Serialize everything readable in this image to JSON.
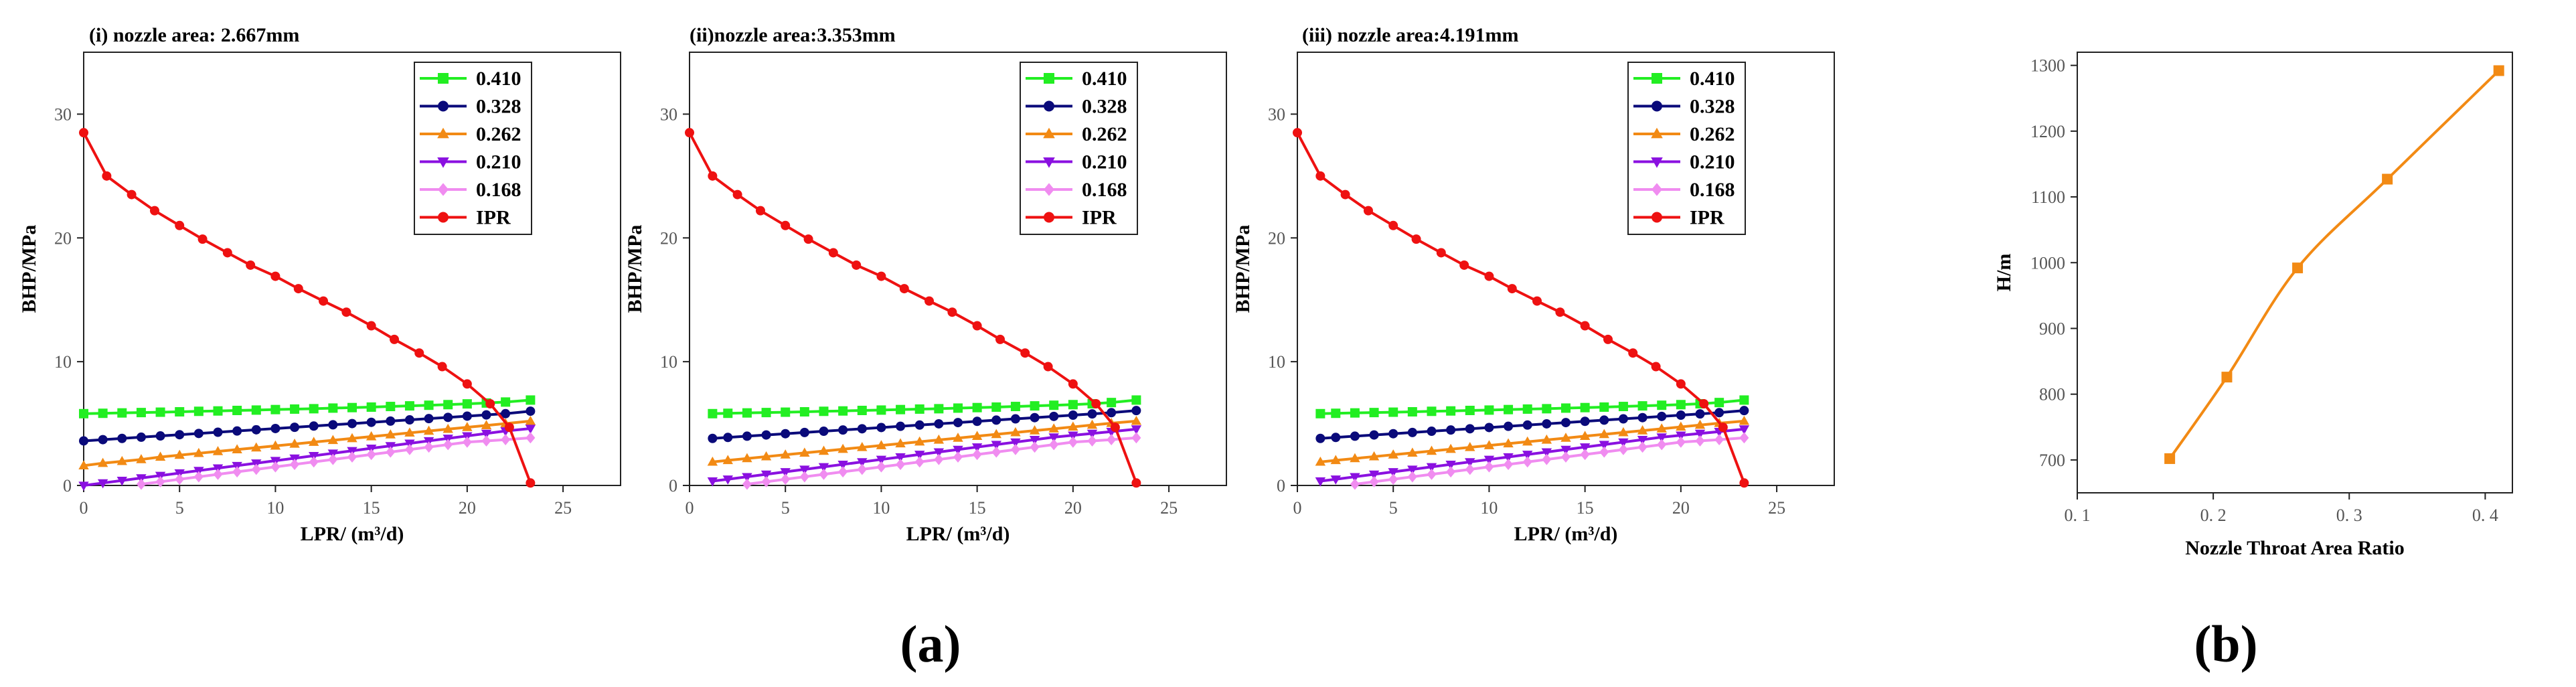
{
  "captions": [
    "(a)",
    "(b)"
  ],
  "chart_data": [
    {
      "type": "line",
      "title": "(i) nozzle area: 2.667mm",
      "xlabel": "LPR/ (m³/d)",
      "ylabel": "BHP/MPa",
      "xlim": [
        0,
        28
      ],
      "ylim": [
        0,
        35
      ],
      "xticks": [
        0,
        5,
        10,
        15,
        20,
        25
      ],
      "yticks": [
        0,
        10,
        20,
        30
      ],
      "legend_position": "top-right",
      "series": [
        {
          "name": "0.410",
          "color": "#22ee22",
          "marker": "square",
          "x": [
            0,
            1,
            2,
            3,
            4,
            5,
            6,
            7,
            8,
            9,
            10,
            11,
            12,
            13,
            14,
            15,
            16,
            17,
            18,
            19,
            20,
            21,
            22,
            23.3
          ],
          "y": [
            5.8,
            5.83,
            5.86,
            5.89,
            5.92,
            5.95,
            5.99,
            6.02,
            6.06,
            6.09,
            6.13,
            6.17,
            6.2,
            6.25,
            6.29,
            6.33,
            6.38,
            6.43,
            6.48,
            6.53,
            6.59,
            6.66,
            6.74,
            6.9
          ]
        },
        {
          "name": "0.328",
          "color": "#0a0a7a",
          "marker": "circle",
          "x": [
            0,
            1,
            2,
            3,
            4,
            5,
            6,
            7,
            8,
            9,
            10,
            11,
            12,
            13,
            14,
            15,
            16,
            17,
            18,
            19,
            20,
            21,
            22,
            23.3
          ],
          "y": [
            3.6,
            3.7,
            3.8,
            3.9,
            4.0,
            4.1,
            4.2,
            4.3,
            4.4,
            4.5,
            4.6,
            4.7,
            4.8,
            4.9,
            5.0,
            5.1,
            5.2,
            5.3,
            5.4,
            5.5,
            5.6,
            5.7,
            5.8,
            6.0
          ]
        },
        {
          "name": "0.262",
          "color": "#f28a14",
          "marker": "triangle-up",
          "x": [
            0,
            1,
            2,
            3,
            4,
            5,
            6,
            7,
            8,
            9,
            10,
            11,
            12,
            13,
            14,
            15,
            16,
            17,
            18,
            19,
            20,
            21,
            22,
            23.3
          ],
          "y": [
            1.6,
            1.8,
            1.95,
            2.1,
            2.3,
            2.45,
            2.6,
            2.75,
            2.9,
            3.05,
            3.2,
            3.35,
            3.5,
            3.65,
            3.8,
            3.95,
            4.1,
            4.25,
            4.4,
            4.55,
            4.7,
            4.85,
            5.0,
            5.2
          ]
        },
        {
          "name": "0.210",
          "color": "#8a10e0",
          "marker": "triangle-down",
          "x": [
            0,
            1,
            2,
            3,
            4,
            5,
            6,
            7,
            8,
            9,
            10,
            11,
            12,
            13,
            14,
            15,
            16,
            17,
            18,
            19,
            20,
            21,
            22,
            23.3
          ],
          "y": [
            0.0,
            0.2,
            0.4,
            0.6,
            0.8,
            1.0,
            1.2,
            1.4,
            1.6,
            1.8,
            2.0,
            2.2,
            2.4,
            2.6,
            2.8,
            3.0,
            3.2,
            3.4,
            3.6,
            3.8,
            4.0,
            4.2,
            4.4,
            4.6
          ]
        },
        {
          "name": "0.168",
          "color": "#f08cf0",
          "marker": "diamond",
          "x": [
            3,
            4,
            5,
            6,
            7,
            8,
            9,
            10,
            11,
            12,
            13,
            14,
            15,
            16,
            17,
            18,
            19,
            20,
            21,
            22,
            23.3
          ],
          "y": [
            0.1,
            0.3,
            0.5,
            0.7,
            0.9,
            1.1,
            1.3,
            1.5,
            1.7,
            1.9,
            2.1,
            2.3,
            2.5,
            2.7,
            2.9,
            3.1,
            3.3,
            3.5,
            3.6,
            3.7,
            3.85
          ]
        },
        {
          "name": "IPR",
          "color": "#ee1111",
          "marker": "circle",
          "x": [
            0,
            1.2,
            2.5,
            3.7,
            5.0,
            6.2,
            7.5,
            8.7,
            10.0,
            11.2,
            12.5,
            13.7,
            15.0,
            16.2,
            17.5,
            18.7,
            20.0,
            21.2,
            22.2,
            23.3
          ],
          "y": [
            28.5,
            25.0,
            23.5,
            22.2,
            21.0,
            19.9,
            18.8,
            17.8,
            16.9,
            15.9,
            14.9,
            14.0,
            12.9,
            11.8,
            10.7,
            9.6,
            8.2,
            6.6,
            4.7,
            0.2
          ]
        }
      ]
    },
    {
      "type": "line",
      "title": "(ii)nozzle area:3.353mm",
      "xlabel": "LPR/ (m³/d)",
      "ylabel": "BHP/MPa",
      "xlim": [
        0,
        28
      ],
      "ylim": [
        0,
        35
      ],
      "xticks": [
        0,
        5,
        10,
        15,
        20,
        25
      ],
      "yticks": [
        0,
        10,
        20,
        30
      ],
      "legend_position": "top-right",
      "series": [
        {
          "name": "0.410",
          "color": "#22ee22",
          "marker": "square",
          "x": [
            1.2,
            2,
            3,
            4,
            5,
            6,
            7,
            8,
            9,
            10,
            11,
            12,
            13,
            14,
            15,
            16,
            17,
            18,
            19,
            20,
            21,
            22,
            23.3
          ],
          "y": [
            5.8,
            5.83,
            5.86,
            5.89,
            5.92,
            5.95,
            5.99,
            6.02,
            6.06,
            6.09,
            6.13,
            6.17,
            6.2,
            6.25,
            6.29,
            6.33,
            6.38,
            6.43,
            6.48,
            6.53,
            6.6,
            6.7,
            6.9
          ]
        },
        {
          "name": "0.328",
          "color": "#0a0a7a",
          "marker": "circle",
          "x": [
            1.2,
            2,
            3,
            4,
            5,
            6,
            7,
            8,
            9,
            10,
            11,
            12,
            13,
            14,
            15,
            16,
            17,
            18,
            19,
            20,
            21,
            22,
            23.3
          ],
          "y": [
            3.8,
            3.88,
            3.98,
            4.08,
            4.18,
            4.28,
            4.38,
            4.48,
            4.58,
            4.68,
            4.78,
            4.88,
            4.98,
            5.08,
            5.18,
            5.28,
            5.38,
            5.48,
            5.58,
            5.68,
            5.78,
            5.88,
            6.05
          ]
        },
        {
          "name": "0.262",
          "color": "#f28a14",
          "marker": "triangle-up",
          "x": [
            1.2,
            2,
            3,
            4,
            5,
            6,
            7,
            8,
            9,
            10,
            11,
            12,
            13,
            14,
            15,
            16,
            17,
            18,
            19,
            20,
            21,
            22,
            23.3
          ],
          "y": [
            1.9,
            2.03,
            2.18,
            2.33,
            2.48,
            2.63,
            2.78,
            2.93,
            3.08,
            3.23,
            3.38,
            3.53,
            3.68,
            3.83,
            3.98,
            4.13,
            4.28,
            4.43,
            4.58,
            4.73,
            4.88,
            5.03,
            5.2
          ]
        },
        {
          "name": "0.210",
          "color": "#8a10e0",
          "marker": "triangle-down",
          "x": [
            1.2,
            2,
            3,
            4,
            5,
            6,
            7,
            8,
            9,
            10,
            11,
            12,
            13,
            14,
            15,
            16,
            17,
            18,
            19,
            20,
            21,
            22,
            23.3
          ],
          "y": [
            0.35,
            0.5,
            0.7,
            0.9,
            1.1,
            1.3,
            1.5,
            1.7,
            1.9,
            2.1,
            2.3,
            2.5,
            2.7,
            2.9,
            3.1,
            3.3,
            3.5,
            3.7,
            3.9,
            4.05,
            4.2,
            4.35,
            4.55
          ]
        },
        {
          "name": "0.168",
          "color": "#f08cf0",
          "marker": "diamond",
          "x": [
            3,
            4,
            5,
            6,
            7,
            8,
            9,
            10,
            11,
            12,
            13,
            14,
            15,
            16,
            17,
            18,
            19,
            20,
            21,
            22,
            23.3
          ],
          "y": [
            0.1,
            0.3,
            0.5,
            0.7,
            0.9,
            1.1,
            1.3,
            1.5,
            1.7,
            1.9,
            2.1,
            2.3,
            2.5,
            2.7,
            2.9,
            3.1,
            3.3,
            3.5,
            3.6,
            3.7,
            3.85
          ]
        },
        {
          "name": "IPR",
          "color": "#ee1111",
          "marker": "circle",
          "x": [
            0,
            1.2,
            2.5,
            3.7,
            5.0,
            6.2,
            7.5,
            8.7,
            10.0,
            11.2,
            12.5,
            13.7,
            15.0,
            16.2,
            17.5,
            18.7,
            20.0,
            21.2,
            22.2,
            23.3
          ],
          "y": [
            28.5,
            25.0,
            23.5,
            22.2,
            21.0,
            19.9,
            18.8,
            17.8,
            16.9,
            15.9,
            14.9,
            14.0,
            12.9,
            11.8,
            10.7,
            9.6,
            8.2,
            6.6,
            4.7,
            0.2
          ]
        }
      ]
    },
    {
      "type": "line",
      "title": "(iii) nozzle area:4.191mm",
      "xlabel": "LPR/ (m³/d)",
      "ylabel": "BHP/MPa",
      "xlim": [
        0,
        28
      ],
      "ylim": [
        0,
        35
      ],
      "xticks": [
        0,
        5,
        10,
        15,
        20,
        25
      ],
      "yticks": [
        0,
        10,
        20,
        30
      ],
      "legend_position": "top-right",
      "series": [
        {
          "name": "0.410",
          "color": "#22ee22",
          "marker": "square",
          "x": [
            1.2,
            2,
            3,
            4,
            5,
            6,
            7,
            8,
            9,
            10,
            11,
            12,
            13,
            14,
            15,
            16,
            17,
            18,
            19,
            20,
            21,
            22,
            23.3
          ],
          "y": [
            5.8,
            5.83,
            5.86,
            5.89,
            5.92,
            5.95,
            5.99,
            6.02,
            6.06,
            6.09,
            6.13,
            6.17,
            6.2,
            6.25,
            6.29,
            6.33,
            6.38,
            6.43,
            6.48,
            6.53,
            6.6,
            6.7,
            6.9
          ]
        },
        {
          "name": "0.328",
          "color": "#0a0a7a",
          "marker": "circle",
          "x": [
            1.2,
            2,
            3,
            4,
            5,
            6,
            7,
            8,
            9,
            10,
            11,
            12,
            13,
            14,
            15,
            16,
            17,
            18,
            19,
            20,
            21,
            22,
            23.3
          ],
          "y": [
            3.8,
            3.88,
            3.98,
            4.08,
            4.18,
            4.28,
            4.38,
            4.48,
            4.58,
            4.68,
            4.78,
            4.88,
            4.98,
            5.08,
            5.18,
            5.28,
            5.38,
            5.48,
            5.58,
            5.68,
            5.78,
            5.88,
            6.05
          ]
        },
        {
          "name": "0.262",
          "color": "#f28a14",
          "marker": "triangle-up",
          "x": [
            1.2,
            2,
            3,
            4,
            5,
            6,
            7,
            8,
            9,
            10,
            11,
            12,
            13,
            14,
            15,
            16,
            17,
            18,
            19,
            20,
            21,
            22,
            23.3
          ],
          "y": [
            1.9,
            2.03,
            2.18,
            2.33,
            2.48,
            2.63,
            2.78,
            2.93,
            3.08,
            3.23,
            3.38,
            3.53,
            3.68,
            3.83,
            3.98,
            4.13,
            4.28,
            4.43,
            4.58,
            4.73,
            4.88,
            5.03,
            5.2
          ]
        },
        {
          "name": "0.210",
          "color": "#8a10e0",
          "marker": "triangle-down",
          "x": [
            1.2,
            2,
            3,
            4,
            5,
            6,
            7,
            8,
            9,
            10,
            11,
            12,
            13,
            14,
            15,
            16,
            17,
            18,
            19,
            20,
            21,
            22,
            23.3
          ],
          "y": [
            0.35,
            0.5,
            0.7,
            0.9,
            1.1,
            1.3,
            1.5,
            1.7,
            1.9,
            2.1,
            2.3,
            2.5,
            2.7,
            2.9,
            3.1,
            3.3,
            3.5,
            3.7,
            3.9,
            4.05,
            4.2,
            4.35,
            4.55
          ]
        },
        {
          "name": "0.168",
          "color": "#f08cf0",
          "marker": "diamond",
          "x": [
            3,
            4,
            5,
            6,
            7,
            8,
            9,
            10,
            11,
            12,
            13,
            14,
            15,
            16,
            17,
            18,
            19,
            20,
            21,
            22,
            23.3
          ],
          "y": [
            0.1,
            0.3,
            0.5,
            0.7,
            0.9,
            1.1,
            1.3,
            1.5,
            1.7,
            1.9,
            2.1,
            2.3,
            2.5,
            2.7,
            2.9,
            3.1,
            3.3,
            3.5,
            3.6,
            3.7,
            3.85
          ]
        },
        {
          "name": "IPR",
          "color": "#ee1111",
          "marker": "circle",
          "x": [
            0,
            1.2,
            2.5,
            3.7,
            5.0,
            6.2,
            7.5,
            8.7,
            10.0,
            11.2,
            12.5,
            13.7,
            15.0,
            16.2,
            17.5,
            18.7,
            20.0,
            21.2,
            22.2,
            23.3
          ],
          "y": [
            28.5,
            25.0,
            23.5,
            22.2,
            21.0,
            19.9,
            18.8,
            17.8,
            16.9,
            15.9,
            14.9,
            14.0,
            12.9,
            11.8,
            10.7,
            9.6,
            8.2,
            6.6,
            4.7,
            0.2
          ]
        }
      ]
    },
    {
      "type": "line",
      "title": "",
      "xlabel": "Nozzle Throat Area Ratio",
      "ylabel": "H/m",
      "xlim": [
        0.1,
        0.42
      ],
      "ylim": [
        650,
        1320
      ],
      "xticks": [
        0.1,
        0.2,
        0.3,
        0.4
      ],
      "xtick_labels": [
        "0. 1",
        "0. 2",
        "0. 3",
        "0. 4"
      ],
      "yticks": [
        700,
        800,
        900,
        1000,
        1100,
        1200,
        1300
      ],
      "series": [
        {
          "name": "",
          "color": "#f28a14",
          "marker": "square",
          "smooth": true,
          "x": [
            0.168,
            0.21,
            0.262,
            0.328,
            0.41
          ],
          "y": [
            702,
            826,
            992,
            1127,
            1292
          ]
        }
      ]
    }
  ]
}
